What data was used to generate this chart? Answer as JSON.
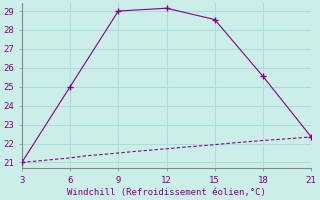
{
  "xlabel": "Windchill (Refroidissement éolien,°C)",
  "background_color": "#cceee8",
  "grid_color": "#aadddd",
  "line_color": "#880088",
  "spine_color": "#888888",
  "xlim": [
    3,
    21
  ],
  "ylim": [
    21,
    29
  ],
  "xticks": [
    3,
    6,
    9,
    12,
    15,
    18,
    21
  ],
  "yticks": [
    21,
    22,
    23,
    24,
    25,
    26,
    27,
    28,
    29
  ],
  "line1_x": [
    3,
    6,
    9,
    12,
    15,
    18,
    21
  ],
  "line1_y": [
    21.0,
    25.0,
    29.0,
    29.15,
    28.55,
    25.55,
    22.35
  ],
  "line2_x": [
    3,
    4,
    5,
    6,
    7,
    8,
    9,
    10,
    11,
    12,
    13,
    14,
    15,
    16,
    17,
    18,
    19,
    20,
    21
  ],
  "line2_y": [
    21.0,
    21.08,
    21.16,
    21.24,
    21.35,
    21.42,
    21.5,
    21.58,
    21.65,
    21.72,
    21.8,
    21.87,
    21.94,
    22.02,
    22.09,
    22.16,
    22.22,
    22.28,
    22.35
  ]
}
